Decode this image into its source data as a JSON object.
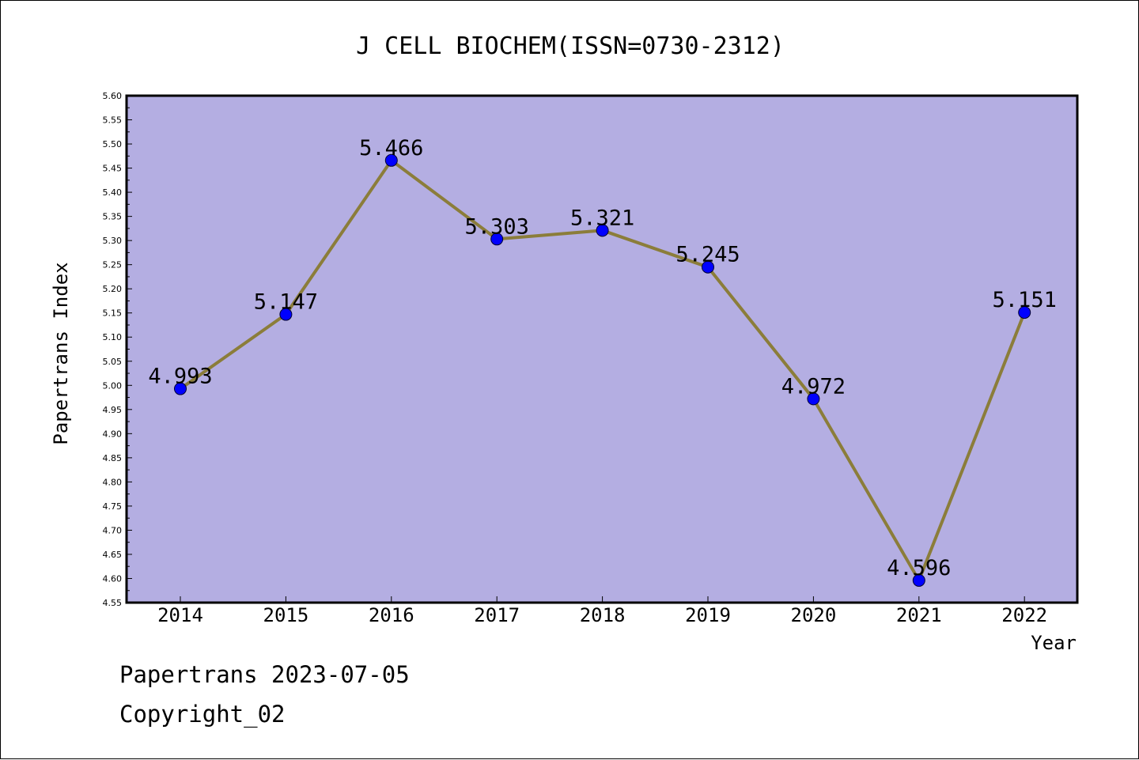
{
  "footer": {
    "line1": "Papertrans 2023-07-05",
    "line2": "Copyright_02"
  },
  "colors": {
    "plot_background": "#b4aee2",
    "line": "#8b7d3a",
    "marker": "#0000ff"
  },
  "chart_data": {
    "type": "line",
    "title": "J CELL BIOCHEM(ISSN=0730-2312)",
    "xlabel": "Year",
    "ylabel": "Papertrans Index",
    "categories": [
      "2014",
      "2015",
      "2016",
      "2017",
      "2018",
      "2019",
      "2020",
      "2021",
      "2022"
    ],
    "values": [
      4.993,
      5.147,
      5.466,
      5.303,
      5.321,
      5.245,
      4.972,
      4.596,
      5.151
    ],
    "data_labels": [
      "4.993",
      "5.147",
      "5.466",
      "5.303",
      "5.321",
      "5.245",
      "4.972",
      "4.596",
      "5.151"
    ],
    "ylim": [
      4.55,
      5.6
    ],
    "yticks": [
      "4.55",
      "4.60",
      "4.65",
      "4.70",
      "4.75",
      "4.80",
      "4.85",
      "4.90",
      "4.95",
      "5.00",
      "5.05",
      "5.10",
      "5.15",
      "5.20",
      "5.25",
      "5.30",
      "5.35",
      "5.40",
      "5.45",
      "5.50",
      "5.55",
      "5.60"
    ],
    "grid": false,
    "legend": "none"
  }
}
